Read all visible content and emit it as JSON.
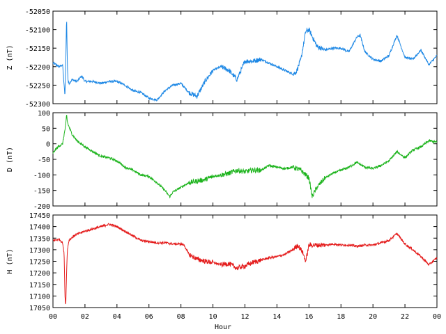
{
  "chart_data": [
    {
      "type": "line",
      "ylabel": "Z (nT)",
      "ylim": [
        -52300,
        -52050
      ],
      "yticks": [
        -52300,
        -52250,
        -52200,
        -52150,
        -52100,
        -52050
      ],
      "ytick_labels": [
        "-52300",
        "-52250",
        "-52200",
        "-52150",
        "-52100",
        "-52050"
      ],
      "color": "#1e88e5",
      "x": [
        0,
        0.4,
        0.6,
        0.75,
        0.8,
        0.85,
        0.9,
        0.95,
        1.0,
        1.2,
        1.5,
        1.8,
        2.0,
        2.5,
        3.0,
        3.5,
        4.0,
        4.5,
        5.0,
        5.5,
        6.0,
        6.5,
        7.0,
        7.5,
        8.0,
        8.5,
        9.0,
        9.5,
        10.0,
        10.5,
        11.0,
        11.5,
        12.0,
        12.5,
        13.0,
        13.5,
        14.0,
        14.5,
        15.0,
        15.2,
        15.5,
        15.8,
        16.0,
        16.5,
        17.0,
        17.5,
        18.0,
        18.5,
        19.0,
        19.2,
        19.5,
        20.0,
        20.5,
        21.0,
        21.5,
        22.0,
        22.5,
        23.0,
        23.5,
        24.0
      ],
      "values": [
        -52190,
        -52200,
        -52195,
        -52280,
        -52190,
        -52060,
        -52200,
        -52240,
        -52245,
        -52235,
        -52240,
        -52225,
        -52240,
        -52240,
        -52245,
        -52240,
        -52240,
        -52250,
        -52265,
        -52270,
        -52285,
        -52290,
        -52265,
        -52250,
        -52245,
        -52270,
        -52280,
        -52240,
        -52210,
        -52200,
        -52210,
        -52235,
        -52185,
        -52185,
        -52180,
        -52190,
        -52200,
        -52210,
        -52220,
        -52215,
        -52180,
        -52105,
        -52100,
        -52145,
        -52155,
        -52150,
        -52150,
        -52160,
        -52120,
        -52115,
        -52160,
        -52180,
        -52185,
        -52170,
        -52115,
        -52175,
        -52180,
        -52155,
        -52195,
        -52170
      ]
    },
    {
      "type": "line",
      "ylabel": "D (nT)",
      "ylim": [
        -200,
        100
      ],
      "yticks": [
        -200,
        -150,
        -100,
        -50,
        0,
        50,
        100
      ],
      "ytick_labels": [
        "-200",
        "-150",
        "-100",
        "-50",
        "0",
        "50",
        "100"
      ],
      "color": "#1db41d",
      "x": [
        0,
        0.3,
        0.6,
        0.8,
        0.85,
        0.9,
        1.0,
        1.2,
        1.5,
        2.0,
        2.5,
        3.0,
        3.5,
        4.0,
        4.5,
        5.0,
        5.5,
        6.0,
        6.5,
        7.0,
        7.3,
        7.5,
        8.0,
        8.5,
        9.0,
        9.5,
        10.0,
        10.5,
        11.0,
        11.5,
        12.0,
        12.5,
        13.0,
        13.5,
        14.0,
        14.5,
        15.0,
        15.5,
        16.0,
        16.2,
        16.5,
        17.0,
        17.5,
        18.0,
        18.5,
        19.0,
        19.5,
        20.0,
        20.5,
        21.0,
        21.5,
        22.0,
        22.5,
        23.0,
        23.5,
        24.0
      ],
      "values": [
        -30,
        -10,
        0,
        60,
        95,
        70,
        55,
        30,
        10,
        -10,
        -25,
        -40,
        -45,
        -55,
        -75,
        -85,
        -100,
        -105,
        -125,
        -150,
        -170,
        -155,
        -140,
        -125,
        -120,
        -115,
        -105,
        -100,
        -95,
        -85,
        -90,
        -85,
        -85,
        -70,
        -75,
        -80,
        -75,
        -85,
        -110,
        -170,
        -140,
        -110,
        -95,
        -85,
        -75,
        -60,
        -75,
        -80,
        -70,
        -55,
        -25,
        -45,
        -20,
        -10,
        10,
        5
      ]
    },
    {
      "type": "line",
      "ylabel": "H (nT)",
      "ylim": [
        17050,
        17450
      ],
      "yticks": [
        17050,
        17100,
        17150,
        17200,
        17250,
        17300,
        17350,
        17400,
        17450
      ],
      "ytick_labels": [
        "17050",
        "17100",
        "17150",
        "17200",
        "17250",
        "17300",
        "17350",
        "17400",
        "17450"
      ],
      "color": "#e41b1b",
      "x": [
        0,
        0.4,
        0.6,
        0.7,
        0.75,
        0.8,
        0.85,
        0.9,
        1.0,
        1.3,
        1.6,
        2.0,
        2.5,
        3.0,
        3.5,
        4.0,
        4.5,
        5.0,
        5.5,
        6.0,
        6.5,
        7.0,
        7.5,
        8.0,
        8.2,
        8.5,
        9.0,
        9.5,
        10.0,
        10.5,
        11.0,
        11.5,
        12.0,
        12.5,
        13.0,
        13.5,
        14.0,
        14.5,
        15.0,
        15.3,
        15.6,
        15.8,
        16.0,
        16.5,
        17.0,
        17.5,
        18.0,
        18.5,
        19.0,
        19.5,
        20.0,
        20.5,
        21.0,
        21.5,
        22.0,
        22.5,
        23.0,
        23.5,
        24.0
      ],
      "values": [
        17340,
        17345,
        17330,
        17280,
        17100,
        17060,
        17200,
        17300,
        17340,
        17360,
        17370,
        17380,
        17390,
        17400,
        17410,
        17400,
        17380,
        17360,
        17340,
        17335,
        17330,
        17330,
        17325,
        17325,
        17320,
        17280,
        17260,
        17250,
        17245,
        17235,
        17240,
        17220,
        17230,
        17245,
        17255,
        17265,
        17270,
        17280,
        17300,
        17320,
        17290,
        17250,
        17320,
        17320,
        17320,
        17325,
        17320,
        17320,
        17315,
        17320,
        17320,
        17330,
        17340,
        17370,
        17325,
        17300,
        17270,
        17235,
        17265
      ]
    }
  ],
  "x_axis": {
    "label": "Hour",
    "ticks": [
      "00",
      "02",
      "04",
      "06",
      "08",
      "10",
      "12",
      "14",
      "16",
      "18",
      "20",
      "22",
      "00"
    ],
    "tick_values": [
      0,
      2,
      4,
      6,
      8,
      10,
      12,
      14,
      16,
      18,
      20,
      22,
      24
    ],
    "xlim": [
      0,
      24
    ]
  }
}
